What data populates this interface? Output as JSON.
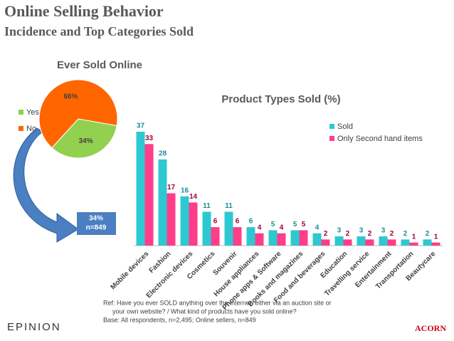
{
  "header": {
    "title": "Online Selling Behavior",
    "subtitle": "Incidence and Top Categories Sold"
  },
  "chart_data": [
    {
      "type": "pie",
      "title": "Ever Sold Online",
      "categories": [
        "Yes",
        "No"
      ],
      "values": [
        34,
        66
      ],
      "value_labels": [
        "34%",
        "66%"
      ],
      "colors": [
        "#92d050",
        "#ff6600"
      ],
      "legend": "left",
      "callout": [
        "34%",
        "n=849"
      ]
    },
    {
      "type": "bar",
      "title": "Product Types Sold (%)",
      "categories": [
        "Mobile devices",
        "Fashion",
        "Electronic devices",
        "Cosmetics",
        "Souvenir",
        "House appliances",
        "Phone apps & Software",
        "Books and magazines",
        "Food and beverages",
        "Education",
        "Travelling service",
        "Entertainment",
        "Transportation",
        "Beautycare"
      ],
      "series": [
        {
          "name": "Sold",
          "color": "#2ec8d2",
          "values": [
            37,
            28,
            16,
            11,
            11,
            6,
            5,
            5,
            4,
            3,
            3,
            3,
            2,
            2
          ]
        },
        {
          "name": "Only Second hand items",
          "color": "#ff3d8b",
          "values": [
            33,
            17,
            14,
            6,
            6,
            4,
            4,
            5,
            2,
            2,
            2,
            2,
            1,
            1
          ]
        }
      ],
      "legend": "top-right"
    }
  ],
  "footnote": [
    "Ref: Have you ever SOLD anything over the internet, either via an auction site or",
    "your own website? / What kind of products have you sold online?",
    "Base: All respondents, n=2,495; Online sellers, n=849"
  ],
  "logos": [
    "EPINION",
    "ACORN"
  ]
}
